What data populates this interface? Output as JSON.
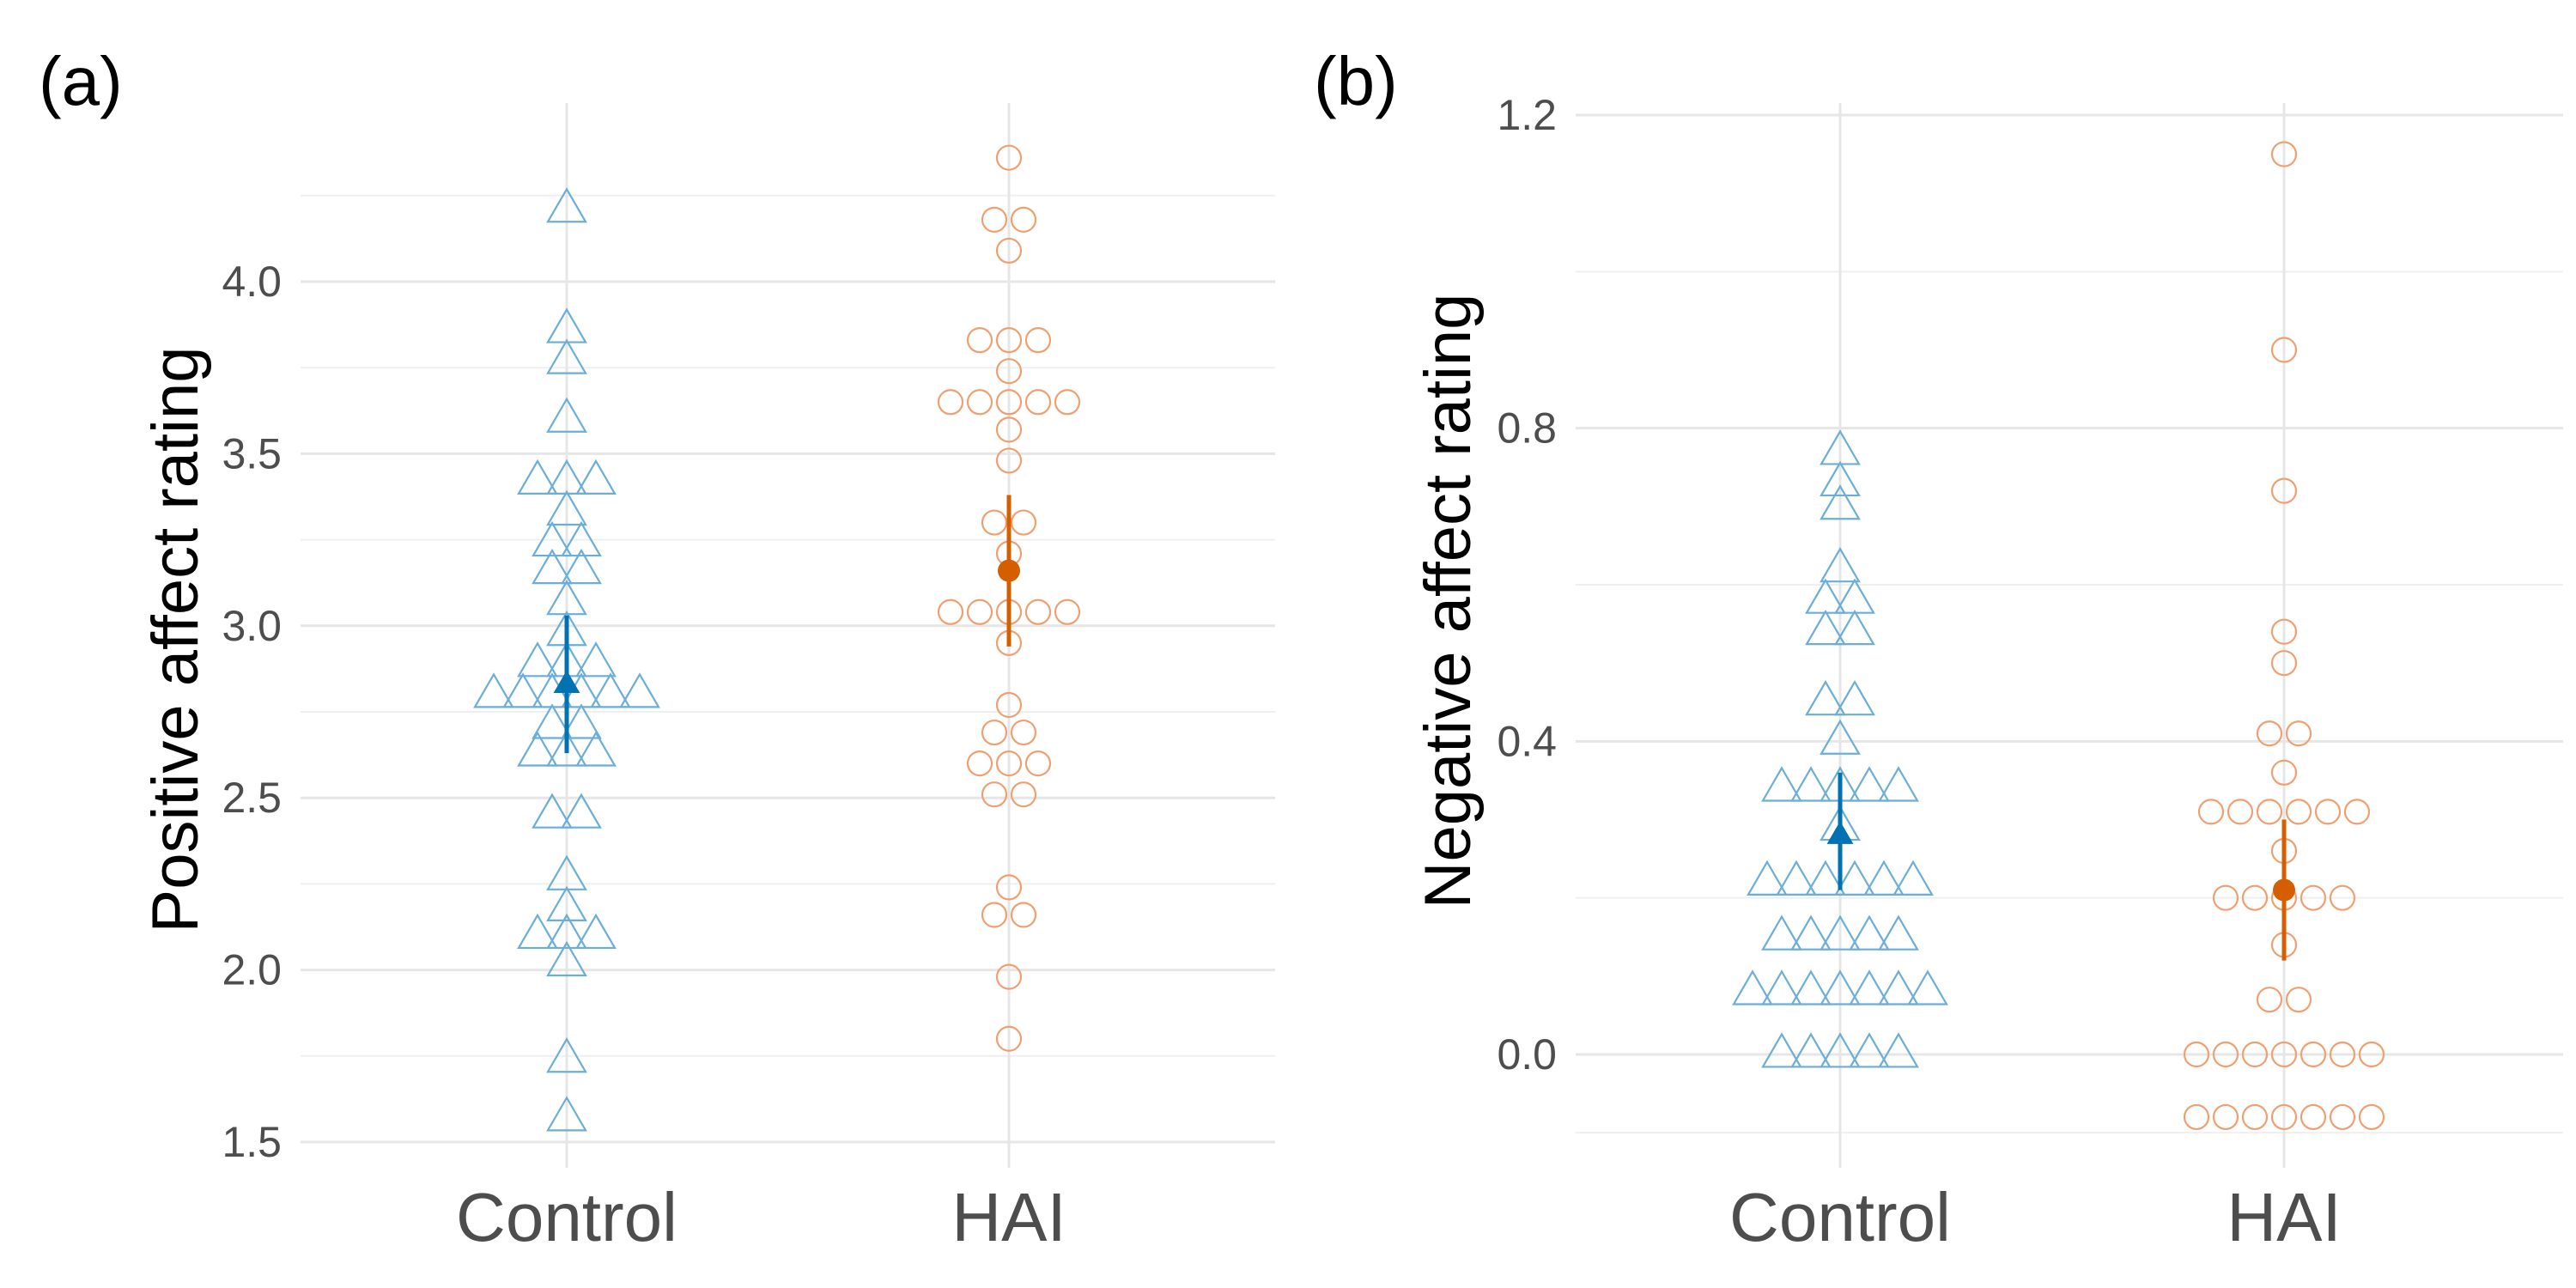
{
  "chart_data": [
    {
      "type": "scatter",
      "panel_label": "(a)",
      "ylabel": "Positive affect rating",
      "xlabel": "",
      "categories": [
        "Control",
        "HAI"
      ],
      "ylim": [
        1.5,
        4.3
      ],
      "yticks": [
        "1.5",
        "2.0",
        "2.5",
        "3.0",
        "3.5",
        "4.0"
      ],
      "grid": true,
      "series": [
        {
          "category": "Control",
          "marker": "triangle-open",
          "color": "#6baed6",
          "values": [
            4.21,
            3.86,
            3.77,
            3.6,
            3.42,
            3.42,
            3.42,
            3.33,
            3.24,
            3.24,
            3.16,
            3.16,
            3.07,
            2.98,
            2.89,
            2.89,
            2.89,
            2.8,
            2.8,
            2.8,
            2.8,
            2.8,
            2.8,
            2.71,
            2.71,
            2.63,
            2.63,
            2.63,
            2.45,
            2.45,
            2.27,
            2.18,
            2.1,
            2.1,
            2.1,
            2.02,
            1.74,
            1.57
          ],
          "mean": 2.83,
          "ci": [
            2.63,
            3.03
          ],
          "summary_color": "#0072b2",
          "summary_marker": "triangle"
        },
        {
          "category": "HAI",
          "marker": "circle-open",
          "color": "#f0a070",
          "values": [
            4.36,
            4.18,
            4.18,
            4.09,
            3.83,
            3.83,
            3.83,
            3.74,
            3.65,
            3.65,
            3.65,
            3.65,
            3.65,
            3.57,
            3.48,
            3.3,
            3.3,
            3.21,
            3.04,
            3.04,
            3.04,
            3.04,
            3.04,
            2.95,
            2.77,
            2.69,
            2.69,
            2.6,
            2.6,
            2.6,
            2.51,
            2.51,
            2.24,
            2.16,
            2.16,
            1.98,
            1.8
          ],
          "mean": 3.16,
          "ci": [
            2.94,
            3.38
          ],
          "summary_color": "#d55e00",
          "summary_marker": "circle"
        }
      ]
    },
    {
      "type": "scatter",
      "panel_label": "(b)",
      "ylabel": "Negative affect rating",
      "xlabel": "",
      "categories": [
        "Control",
        "HAI"
      ],
      "ylim": [
        -0.12,
        1.2
      ],
      "yticks": [
        "0.0",
        "0.4",
        "0.8",
        "1.2"
      ],
      "grid": true,
      "series": [
        {
          "category": "Control",
          "marker": "triangle-open",
          "color": "#6baed6",
          "values": [
            0.77,
            0.73,
            0.7,
            0.62,
            0.58,
            0.58,
            0.54,
            0.54,
            0.45,
            0.45,
            0.4,
            0.34,
            0.34,
            0.34,
            0.34,
            0.34,
            0.29,
            0.22,
            0.22,
            0.22,
            0.22,
            0.22,
            0.22,
            0.15,
            0.15,
            0.15,
            0.15,
            0.15,
            0.08,
            0.08,
            0.08,
            0.08,
            0.08,
            0.08,
            0.08,
            0.0,
            0.0,
            0.0,
            0.0,
            0.0
          ],
          "mean": 0.28,
          "ci": [
            0.21,
            0.36
          ],
          "summary_color": "#0072b2",
          "summary_marker": "triangle"
        },
        {
          "category": "HAI",
          "marker": "circle-open",
          "color": "#f0a070",
          "values": [
            1.15,
            0.9,
            0.72,
            0.54,
            0.5,
            0.41,
            0.41,
            0.36,
            0.31,
            0.31,
            0.31,
            0.31,
            0.31,
            0.31,
            0.26,
            0.2,
            0.2,
            0.2,
            0.2,
            0.2,
            0.14,
            0.07,
            0.07,
            0.0,
            0.0,
            0.0,
            0.0,
            0.0,
            0.0,
            0.0,
            -0.08,
            -0.08,
            -0.08,
            -0.08,
            -0.08,
            -0.08,
            -0.08
          ],
          "mean": 0.21,
          "ci": [
            0.12,
            0.3
          ],
          "summary_color": "#d55e00",
          "summary_marker": "circle"
        }
      ]
    }
  ]
}
